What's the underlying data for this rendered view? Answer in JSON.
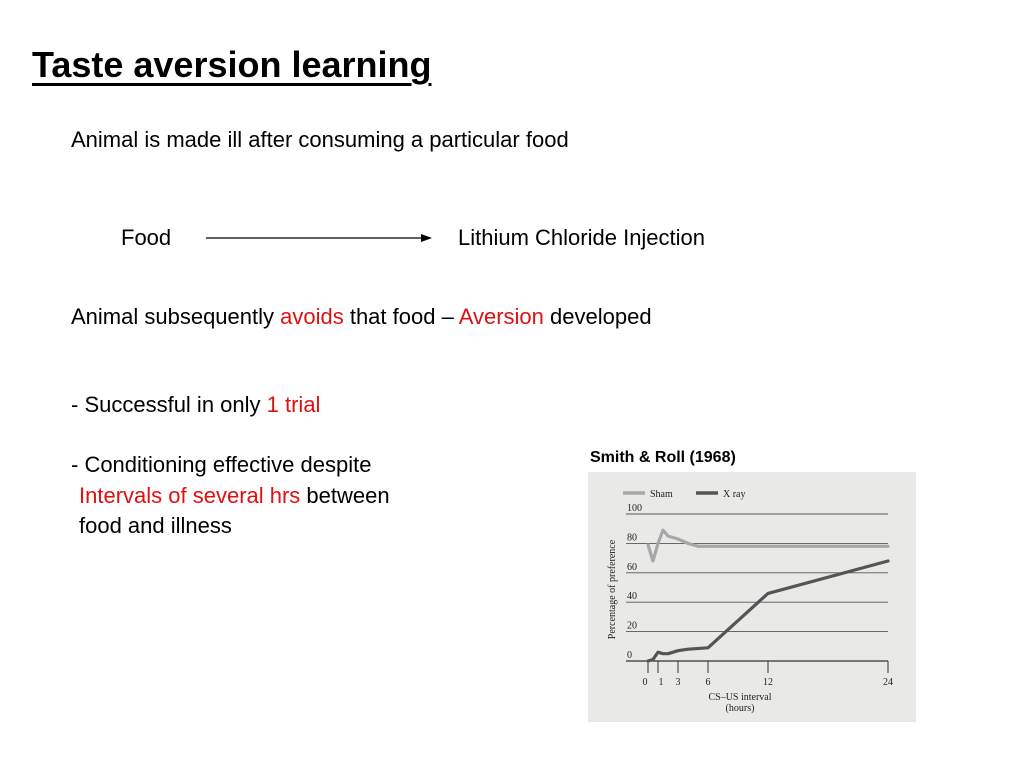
{
  "slide": {
    "title": "Taste aversion learning",
    "line1": "Animal is made ill after consuming a particular food",
    "diagram": {
      "from": "Food",
      "to": "Lithium Chloride Injection"
    },
    "line3": {
      "part1": "Animal subsequently ",
      "part2": "avoids",
      "part3": " that food – ",
      "part4": "Aversion",
      "part5": " developed"
    },
    "bullet1": {
      "part1": "- Successful in only ",
      "part2": "1 trial"
    },
    "bullet2": {
      "line1": "- Conditioning effective despite",
      "line2_red": "Intervals of several hrs",
      "line2_rest": " between",
      "line3": "food and illness"
    },
    "accent_color": "#e01010"
  },
  "figure": {
    "caption": "Smith & Roll (1968)"
  },
  "chart_data": {
    "type": "line",
    "title": "",
    "xlabel": "CS–US interval (hours)",
    "xlabel_line1": "CS–US interval",
    "xlabel_line2": "(hours)",
    "ylabel": "Percentage of preference",
    "ylim": [
      0,
      100
    ],
    "xlim": [
      0,
      24
    ],
    "x_ticks": [
      "0",
      "1",
      "3",
      "6",
      "12",
      "24"
    ],
    "x_tick_values": [
      0,
      1,
      3,
      6,
      12,
      24
    ],
    "y_ticks": [
      "0",
      "20",
      "40",
      "60",
      "80",
      "100"
    ],
    "y_tick_values": [
      0,
      20,
      40,
      60,
      80,
      100
    ],
    "grid": true,
    "legend": "top-left",
    "series": [
      {
        "name": "Sham",
        "color": "#a8a8a8",
        "x": [
          0,
          0.5,
          1,
          1.5,
          2,
          3,
          4,
          5,
          6,
          12,
          24
        ],
        "y": [
          79,
          68,
          80,
          89,
          85,
          83,
          80,
          78,
          78,
          78,
          78
        ]
      },
      {
        "name": "X ray",
        "color": "#555555",
        "x": [
          0,
          0.5,
          1,
          1.5,
          2,
          3,
          4,
          6,
          12,
          24
        ],
        "y": [
          0,
          1,
          6,
          5,
          5,
          7,
          8,
          9,
          46,
          68
        ]
      }
    ]
  }
}
